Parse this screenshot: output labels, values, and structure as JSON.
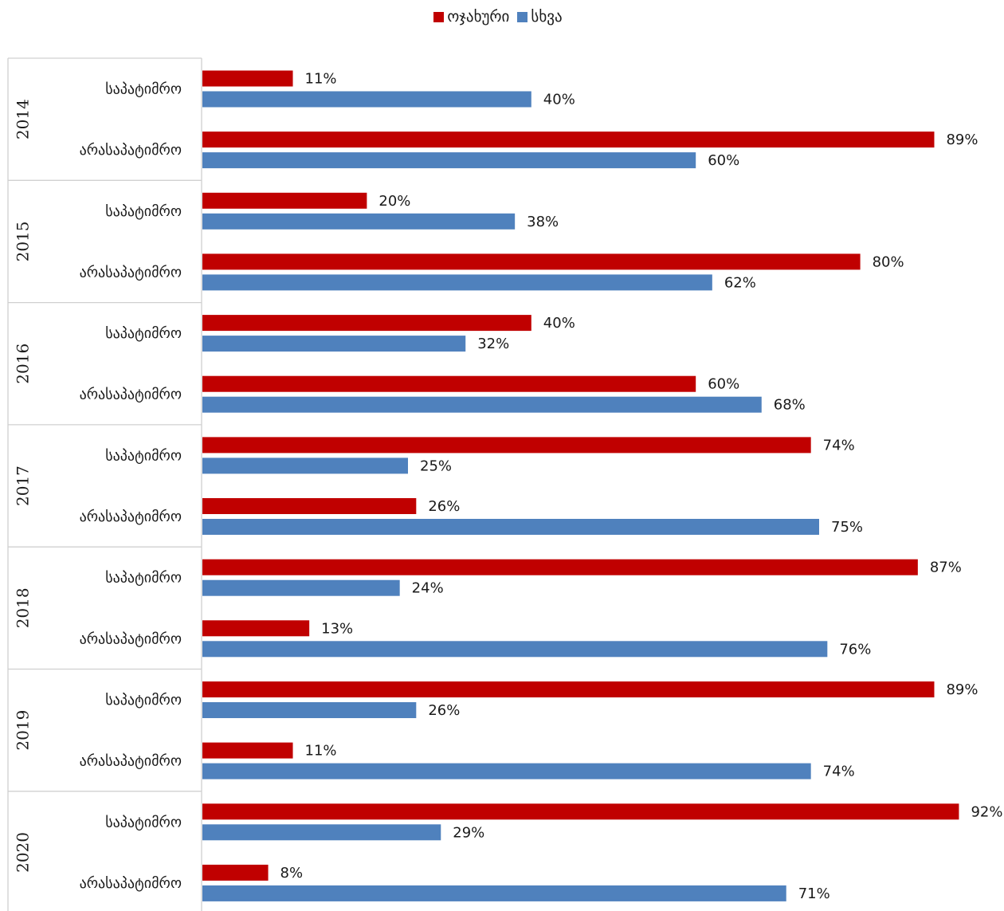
{
  "chart_data": {
    "type": "bar",
    "orientation": "horizontal",
    "groups": [
      "2014",
      "2015",
      "2016",
      "2017",
      "2018",
      "2019",
      "2020"
    ],
    "subcategories": [
      "საპატიმრო",
      "არასაპატიმრო"
    ],
    "series": [
      {
        "name": "ოჯახური",
        "color": "#c00000",
        "values": [
          [
            11,
            89
          ],
          [
            20,
            80
          ],
          [
            40,
            60
          ],
          [
            74,
            26
          ],
          [
            87,
            13
          ],
          [
            89,
            11
          ],
          [
            92,
            8
          ]
        ]
      },
      {
        "name": "სხვა",
        "color": "#4f81bd",
        "values": [
          [
            40,
            60
          ],
          [
            38,
            62
          ],
          [
            32,
            68
          ],
          [
            25,
            75
          ],
          [
            24,
            76
          ],
          [
            26,
            74
          ],
          [
            29,
            71
          ]
        ]
      }
    ],
    "value_suffix": "%",
    "legend_position": "top-center",
    "grid": false
  }
}
